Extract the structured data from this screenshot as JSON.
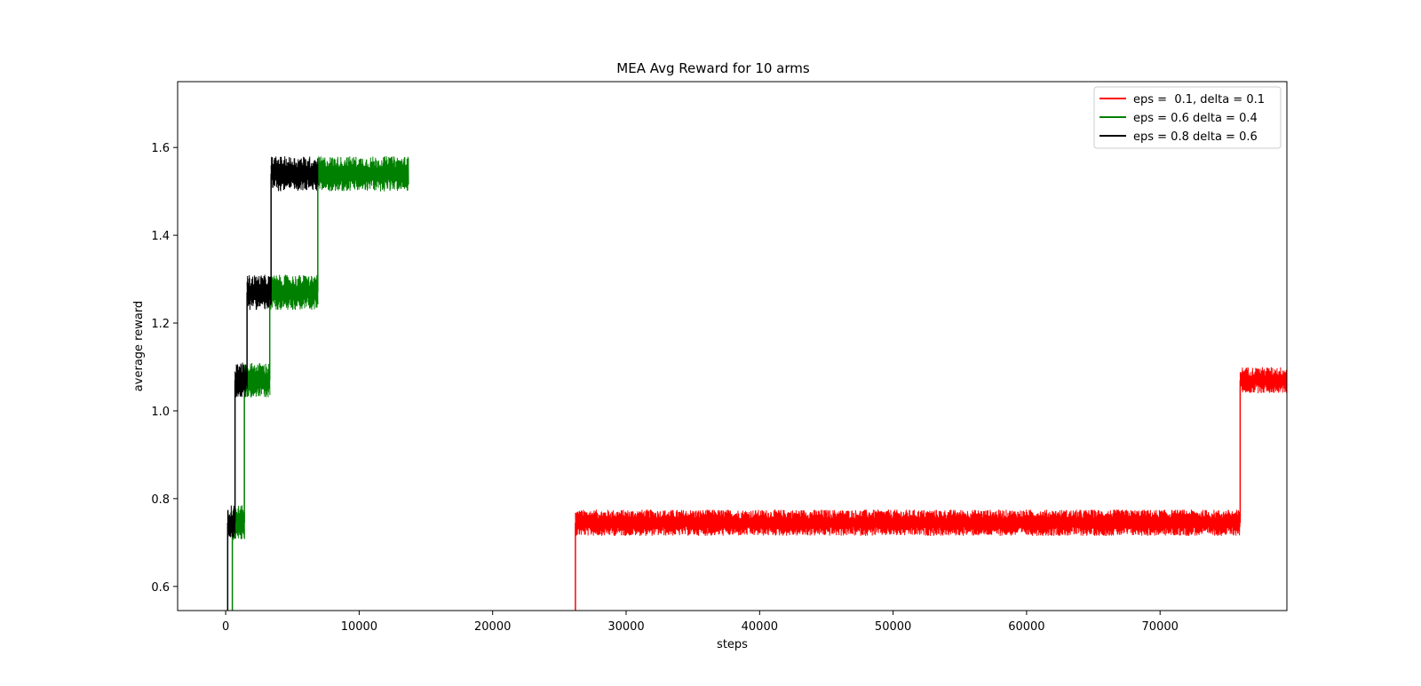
{
  "chart_data": {
    "type": "line",
    "title": "MEA Avg Reward for 10 arms",
    "xlabel": "steps",
    "ylabel": "average reward",
    "xlim": [
      -3600,
      79500
    ],
    "ylim": [
      0.545,
      1.75
    ],
    "xticks": [
      0,
      10000,
      20000,
      30000,
      40000,
      50000,
      60000,
      70000
    ],
    "xtick_labels": [
      "0",
      "10000",
      "20000",
      "30000",
      "40000",
      "50000",
      "60000",
      "70000"
    ],
    "yticks": [
      0.6,
      0.8,
      1.0,
      1.2,
      1.4,
      1.6
    ],
    "ytick_labels": [
      "0.6",
      "0.8",
      "1.0",
      "1.2",
      "1.4",
      "1.6"
    ],
    "grid": false,
    "legend_position": "top-right",
    "series": [
      {
        "name": "eps =  0.1, delta = 0.1",
        "color": "#ff0000",
        "noise": 0.015,
        "segments": [
          {
            "x_start": 26200,
            "x_end": 76000,
            "level": 0.745
          },
          {
            "x_start": 76000,
            "x_end": 79500,
            "level": 1.07
          }
        ],
        "jumps": [
          {
            "x": 26200,
            "from": 0.545,
            "to": 0.745
          },
          {
            "x": 76000,
            "from": 0.745,
            "to": 1.07
          }
        ]
      },
      {
        "name": "eps = 0.6 delta = 0.4",
        "color": "#008000",
        "noise": 0.02,
        "segments": [
          {
            "x_start": 500,
            "x_end": 1400,
            "level": 0.745
          },
          {
            "x_start": 1400,
            "x_end": 3300,
            "level": 1.07
          },
          {
            "x_start": 3300,
            "x_end": 6900,
            "level": 1.27
          },
          {
            "x_start": 6900,
            "x_end": 13700,
            "level": 1.54
          }
        ],
        "jumps": [
          {
            "x": 500,
            "from": 0.545,
            "to": 0.745
          },
          {
            "x": 1400,
            "from": 0.745,
            "to": 1.07
          },
          {
            "x": 3300,
            "from": 1.07,
            "to": 1.27
          },
          {
            "x": 6900,
            "from": 1.27,
            "to": 1.54
          }
        ]
      },
      {
        "name": "eps = 0.8 delta = 0.6",
        "color": "#000000",
        "noise": 0.02,
        "segments": [
          {
            "x_start": 150,
            "x_end": 700,
            "level": 0.745
          },
          {
            "x_start": 700,
            "x_end": 1600,
            "level": 1.07
          },
          {
            "x_start": 1600,
            "x_end": 3400,
            "level": 1.27
          },
          {
            "x_start": 3400,
            "x_end": 6900,
            "level": 1.54
          }
        ],
        "jumps": [
          {
            "x": 150,
            "from": 0.545,
            "to": 0.745
          },
          {
            "x": 700,
            "from": 0.745,
            "to": 1.07
          },
          {
            "x": 1600,
            "from": 1.07,
            "to": 1.27
          },
          {
            "x": 3400,
            "from": 1.27,
            "to": 1.54
          }
        ]
      }
    ]
  }
}
